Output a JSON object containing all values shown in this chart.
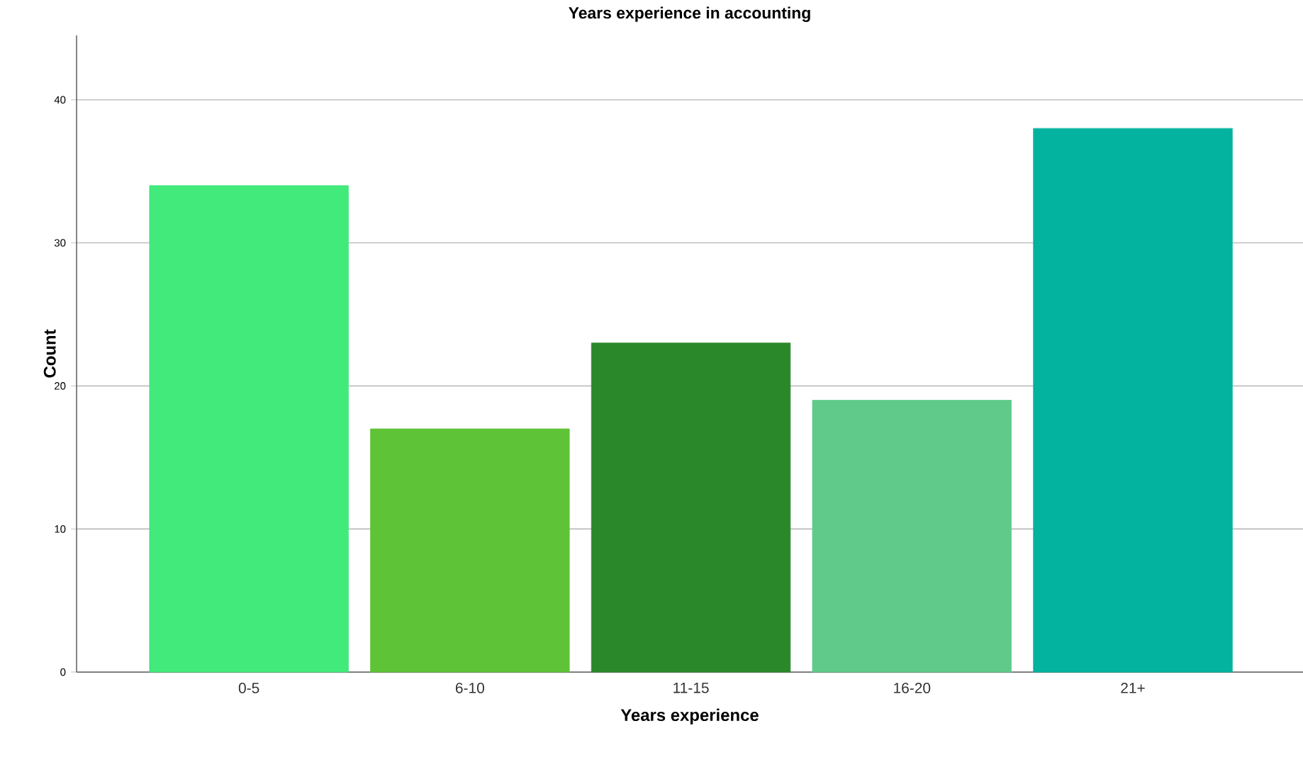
{
  "chart_data": {
    "type": "bar",
    "title": "Years experience in accounting",
    "xlabel": "Years experience",
    "ylabel": "Count",
    "categories": [
      "0-5",
      "6-10",
      "11-15",
      "16-20",
      "21+"
    ],
    "values": [
      34,
      17,
      23,
      19,
      38
    ],
    "colors": [
      "#42e97b",
      "#5fc337",
      "#2a882b",
      "#5fca8a",
      "#03b39f"
    ],
    "ylim": [
      0,
      44.5
    ],
    "yticks": [
      0,
      10,
      20,
      30,
      40
    ],
    "grid": "y"
  }
}
